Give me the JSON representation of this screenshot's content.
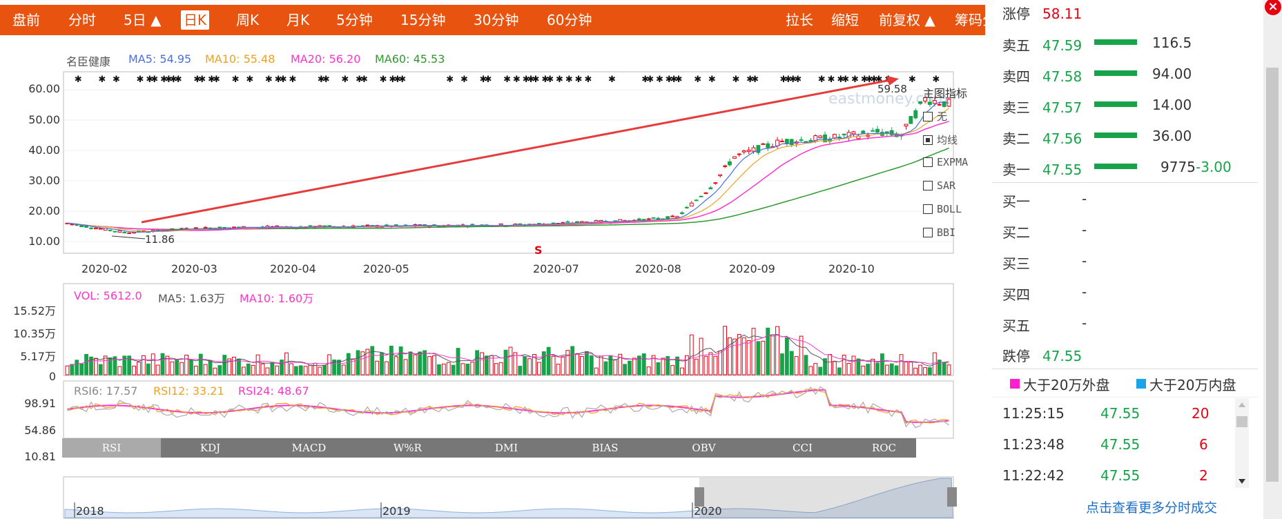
{
  "toolbar": {
    "left": [
      "盘前",
      "分时",
      "5日 ▲",
      "日K",
      "周K",
      "月K",
      "5分钟",
      "15分钟",
      "30分钟",
      "60分钟"
    ],
    "right": [
      "拉长",
      "缩短",
      "前复权 ▲",
      "筹码分布"
    ],
    "active": "日K"
  },
  "legend": {
    "name": "名臣健康",
    "ma5": "MA5: 54.95",
    "ma10": "MA10: 55.48",
    "ma20": "MA20: 56.20",
    "ma60": "MA60: 45.53"
  },
  "price_axis": [
    "60.00",
    "50.00",
    "40.00",
    "30.00",
    "20.00",
    "10.00"
  ],
  "date_axis": [
    "2020-02",
    "2020-03",
    "2020-04",
    "2020-05",
    "2020-07",
    "2020-08",
    "2020-09",
    "2020-10"
  ],
  "annotations": {
    "high": "59.58",
    "low": "11.86",
    "marker": "S",
    "watermark": "eastmoney.com"
  },
  "indicators": {
    "title": "主图指标",
    "items": [
      "无",
      "均线",
      "EXPMA",
      "SAR",
      "BOLL",
      "BBI"
    ],
    "checked": "均线"
  },
  "volume": {
    "legend": [
      "VOL: 5612.0",
      "MA5: 1.63万",
      "MA10: 1.60万"
    ],
    "axis": [
      "15.52万",
      "10.35万",
      "5.17万",
      "0"
    ]
  },
  "rsi": {
    "legend": [
      "RSI6: 17.57",
      "RSI12: 33.21",
      "RSI24: 48.67"
    ],
    "axis": [
      "98.91",
      "54.86",
      "10.81"
    ]
  },
  "tabs": [
    "RSI",
    "KDJ",
    "MACD",
    "W%R",
    "DMI",
    "BIAS",
    "OBV",
    "CCI",
    "ROC"
  ],
  "active_tab": "RSI",
  "navigator": {
    "years": [
      "2018",
      "2019",
      "2020"
    ]
  },
  "orderbook": {
    "limit_up": {
      "label": "涨停",
      "price": "58.11"
    },
    "sells": [
      {
        "label": "卖五",
        "price": "47.59",
        "vol": "116.5",
        "chg": ""
      },
      {
        "label": "卖四",
        "price": "47.58",
        "vol": "94.00",
        "chg": ""
      },
      {
        "label": "卖三",
        "price": "47.57",
        "vol": "14.00",
        "chg": ""
      },
      {
        "label": "卖二",
        "price": "47.56",
        "vol": "36.00",
        "chg": ""
      },
      {
        "label": "卖一",
        "price": "47.55",
        "vol": "9775",
        "chg": "-3.00"
      }
    ],
    "buys": [
      {
        "label": "买一",
        "price": "-"
      },
      {
        "label": "买二",
        "price": "-"
      },
      {
        "label": "买三",
        "price": "-"
      },
      {
        "label": "买四",
        "price": "-"
      },
      {
        "label": "买五",
        "price": "-"
      }
    ],
    "limit_down": {
      "label": "跌停",
      "price": "47.55"
    }
  },
  "trade_legend": {
    "outer": "大于20万外盘",
    "inner": "大于20万内盘"
  },
  "trades": [
    {
      "time": "11:25:15",
      "price": "47.55",
      "vol": "20"
    },
    {
      "time": "11:23:48",
      "price": "47.55",
      "vol": "6"
    },
    {
      "time": "11:22:42",
      "price": "47.55",
      "vol": "2"
    }
  ],
  "more_link": "点击查看更多分时成交",
  "colors": {
    "toolbar": "#e8540f",
    "up": "#e60012",
    "down": "#16a34a",
    "ma5": "#4a6ee0",
    "ma10": "#f0a020",
    "ma20": "#ff33cc",
    "ma60": "#2e9a2e"
  }
}
